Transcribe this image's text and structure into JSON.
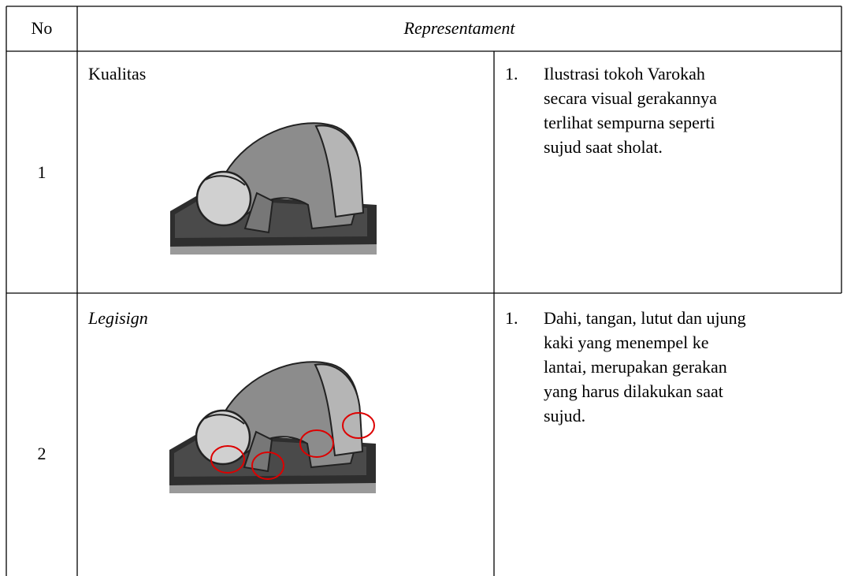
{
  "table": {
    "header": [
      "No",
      "Representament"
    ],
    "rows": [
      {
        "no": "1",
        "sign": "Kualitas",
        "items": [
          {
            "marker": "1.",
            "lines": [
              "Ilustrasi tokoh Varokah",
              "secara visual gerakannya",
              "terlihat sempurna seperti",
              "sujud saat sholat."
            ]
          }
        ]
      },
      {
        "no": "2",
        "sign": "Legisign",
        "items": [
          {
            "marker": "1.",
            "lines": [
              "Dahi, tangan, lutut dan ujung",
              "kaki yang menempel ke",
              "lantai, merupakan gerakan",
              "yang harus dilakukan saat",
              "sujud."
            ]
          }
        ]
      }
    ]
  }
}
